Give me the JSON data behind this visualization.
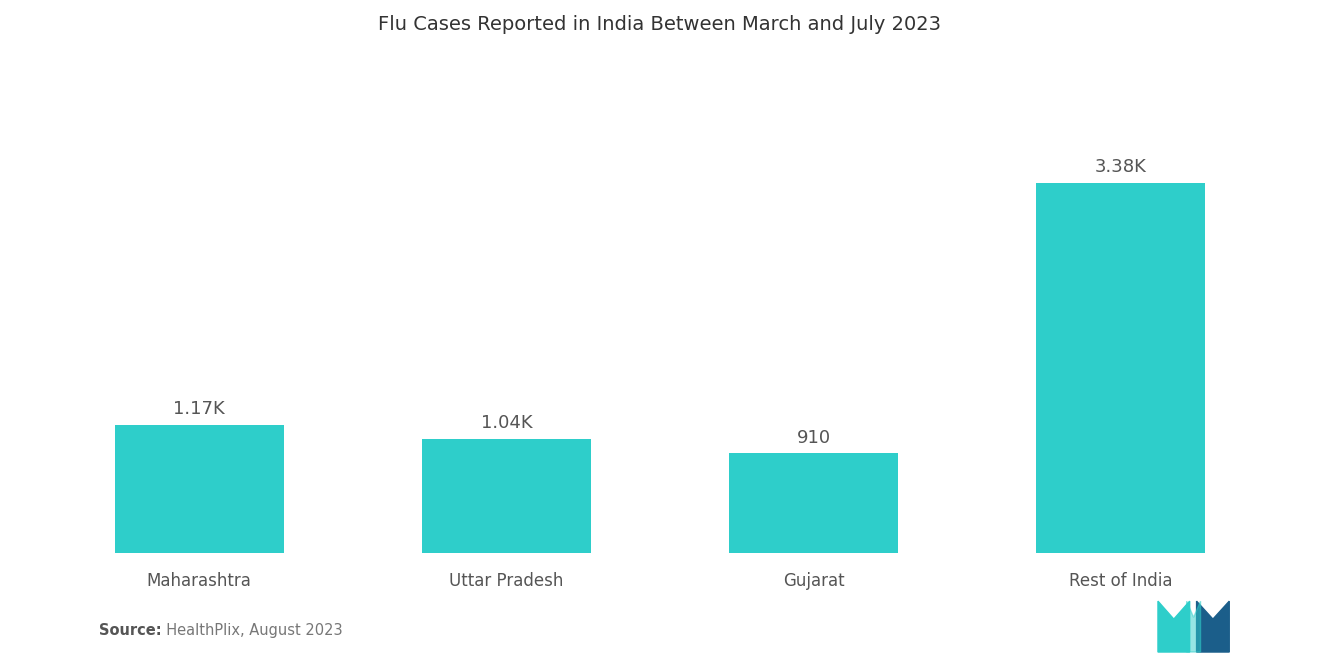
{
  "title": "Flu Cases Reported in India Between March and July 2023",
  "categories": [
    "Maharashtra",
    "Uttar Pradesh",
    "Gujarat",
    "Rest of India"
  ],
  "values": [
    1170,
    1040,
    910,
    3380
  ],
  "bar_labels": [
    "1.17K",
    "1.04K",
    "910",
    "3.38K"
  ],
  "bar_color": "#2ECECA",
  "background_color": "#ffffff",
  "title_fontsize": 14,
  "label_fontsize": 13,
  "tick_fontsize": 12,
  "source_bold": "Source:",
  "source_rest": "  HealthPlix, August 2023",
  "ylim": [
    0,
    4500
  ],
  "bar_width": 0.55,
  "figsize": [
    13.2,
    6.65
  ],
  "logo_left_color": "#2ECECA",
  "logo_right_color": "#1B5E8A"
}
